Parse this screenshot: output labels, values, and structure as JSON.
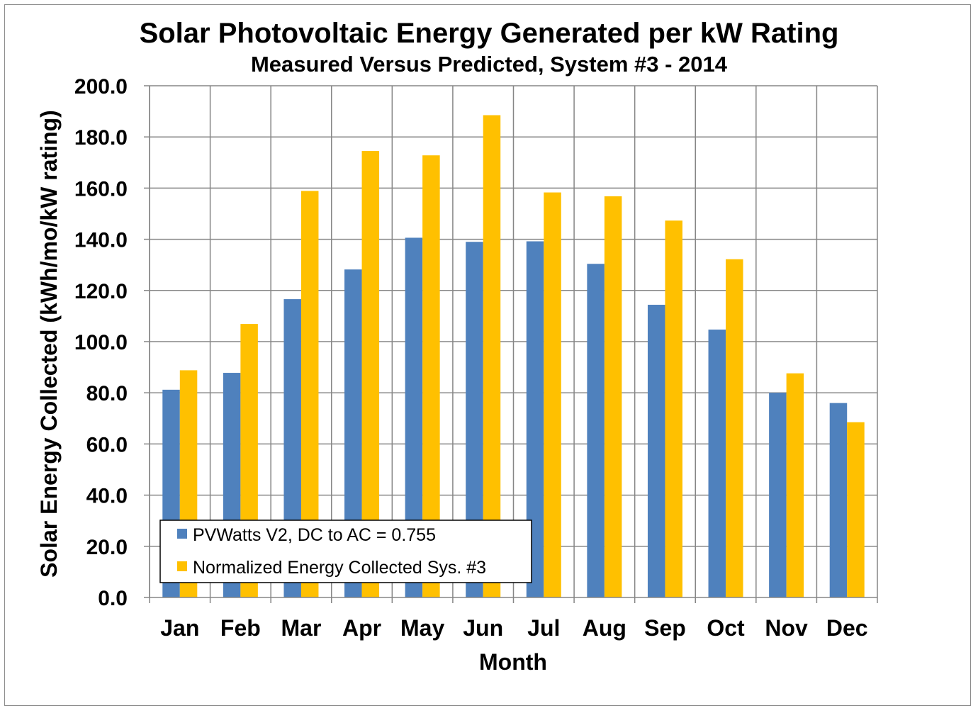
{
  "chart_data": {
    "type": "bar",
    "title": "Solar Photovoltaic Energy Generated per kW Rating",
    "subtitle": "Measured Versus Predicted, System #3 - 2014",
    "xlabel": "Month",
    "ylabel": "Solar Energy Collected (kWh/mo/kW rating)",
    "ylim": [
      0,
      200
    ],
    "ytick_step": 20,
    "ytick_labels": [
      "0.0",
      "20.0",
      "40.0",
      "60.0",
      "80.0",
      "100.0",
      "120.0",
      "140.0",
      "160.0",
      "180.0",
      "200.0"
    ],
    "grid": true,
    "legend_position": "bottom-left",
    "categories": [
      "Jan",
      "Feb",
      "Mar",
      "Apr",
      "May",
      "Jun",
      "Jul",
      "Aug",
      "Sep",
      "Oct",
      "Nov",
      "Dec"
    ],
    "series": [
      {
        "name": "PVWatts V2, DC to AC = 0.755",
        "color": "#4f81bd",
        "values": [
          81.2,
          87.8,
          116.6,
          128.2,
          140.6,
          139.0,
          139.2,
          130.4,
          114.4,
          104.7,
          80.0,
          76.0
        ]
      },
      {
        "name": "Normalized Energy Collected Sys. #3",
        "color": "#ffc000",
        "values": [
          88.8,
          106.9,
          158.9,
          174.5,
          172.8,
          188.5,
          158.3,
          156.8,
          147.3,
          132.2,
          87.6,
          68.5
        ]
      }
    ]
  }
}
